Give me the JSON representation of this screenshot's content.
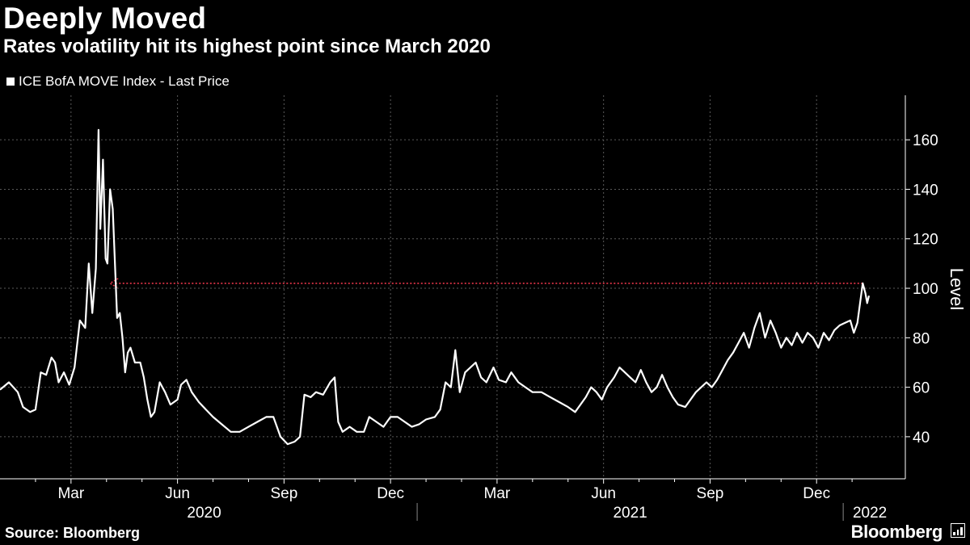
{
  "header": {
    "title": "Deeply Moved",
    "subtitle": "Rates volatility hit its highest point since March 2020"
  },
  "footer": {
    "source": "Source: Bloomberg",
    "brand": "Bloomberg"
  },
  "colors": {
    "background": "#000000",
    "line": "#ffffff",
    "grid": "#5a5a5a",
    "annotation": "#e8364a"
  },
  "chart_data": {
    "type": "line",
    "title": "Deeply Moved",
    "subtitle": "Rates volatility hit its highest point since March 2020",
    "series": [
      {
        "name": "ICE BofA MOVE Index - Last Price",
        "points": [
          [
            0,
            59
          ],
          [
            0.5,
            62
          ],
          [
            1,
            58
          ],
          [
            1.3,
            52
          ],
          [
            1.7,
            50
          ],
          [
            2,
            51
          ],
          [
            2.3,
            66
          ],
          [
            2.6,
            65
          ],
          [
            2.9,
            72
          ],
          [
            3.1,
            70
          ],
          [
            3.3,
            62
          ],
          [
            3.6,
            66
          ],
          [
            3.9,
            61
          ],
          [
            4.2,
            68
          ],
          [
            4.5,
            87
          ],
          [
            4.8,
            84
          ],
          [
            5.0,
            110
          ],
          [
            5.2,
            90
          ],
          [
            5.4,
            108
          ],
          [
            5.55,
            164
          ],
          [
            5.65,
            124
          ],
          [
            5.8,
            152
          ],
          [
            5.95,
            112
          ],
          [
            6.05,
            110
          ],
          [
            6.2,
            140
          ],
          [
            6.35,
            132
          ],
          [
            6.5,
            106
          ],
          [
            6.6,
            88
          ],
          [
            6.75,
            90
          ],
          [
            6.9,
            80
          ],
          [
            7.05,
            66
          ],
          [
            7.2,
            74
          ],
          [
            7.35,
            76
          ],
          [
            7.6,
            70
          ],
          [
            7.9,
            70
          ],
          [
            8.1,
            64
          ],
          [
            8.3,
            55
          ],
          [
            8.5,
            48
          ],
          [
            8.7,
            50
          ],
          [
            9.0,
            62
          ],
          [
            9.3,
            58
          ],
          [
            9.6,
            53
          ],
          [
            10.0,
            55
          ],
          [
            10.2,
            61
          ],
          [
            10.5,
            63
          ],
          [
            10.8,
            58
          ],
          [
            11.2,
            54
          ],
          [
            11.6,
            51
          ],
          [
            12.0,
            48
          ],
          [
            12.5,
            45
          ],
          [
            13.0,
            42
          ],
          [
            13.5,
            42
          ],
          [
            14.0,
            44
          ],
          [
            14.5,
            46
          ],
          [
            15.0,
            48
          ],
          [
            15.4,
            48
          ],
          [
            15.8,
            40
          ],
          [
            16.2,
            37
          ],
          [
            16.6,
            38
          ],
          [
            16.9,
            40
          ],
          [
            17.15,
            57
          ],
          [
            17.5,
            56
          ],
          [
            17.8,
            58
          ],
          [
            18.2,
            57
          ],
          [
            18.6,
            62
          ],
          [
            18.85,
            64
          ],
          [
            19.05,
            46
          ],
          [
            19.3,
            42
          ],
          [
            19.7,
            44
          ],
          [
            20.1,
            42
          ],
          [
            20.5,
            42
          ],
          [
            20.8,
            48
          ],
          [
            21.2,
            46
          ],
          [
            21.6,
            44
          ],
          [
            22.0,
            48
          ],
          [
            22.4,
            48
          ],
          [
            22.8,
            46
          ],
          [
            23.2,
            44
          ],
          [
            23.6,
            45
          ],
          [
            24.0,
            47
          ],
          [
            24.5,
            48
          ],
          [
            24.8,
            51
          ],
          [
            25.1,
            62
          ],
          [
            25.4,
            60
          ],
          [
            25.65,
            75
          ],
          [
            25.9,
            58
          ],
          [
            26.2,
            66
          ],
          [
            26.5,
            68
          ],
          [
            26.8,
            70
          ],
          [
            27.1,
            64
          ],
          [
            27.4,
            62
          ],
          [
            27.8,
            68
          ],
          [
            28.1,
            63
          ],
          [
            28.5,
            62
          ],
          [
            28.8,
            66
          ],
          [
            29.2,
            62
          ],
          [
            29.6,
            60
          ],
          [
            30.0,
            58
          ],
          [
            30.5,
            58
          ],
          [
            31.0,
            56
          ],
          [
            31.5,
            54
          ],
          [
            32.0,
            52
          ],
          [
            32.4,
            50
          ],
          [
            32.7,
            53
          ],
          [
            33.0,
            56
          ],
          [
            33.3,
            60
          ],
          [
            33.6,
            58
          ],
          [
            33.9,
            55
          ],
          [
            34.2,
            60
          ],
          [
            34.6,
            64
          ],
          [
            34.9,
            68
          ],
          [
            35.2,
            66
          ],
          [
            35.5,
            64
          ],
          [
            35.8,
            62
          ],
          [
            36.1,
            67
          ],
          [
            36.4,
            62
          ],
          [
            36.7,
            58
          ],
          [
            37.0,
            60
          ],
          [
            37.3,
            65
          ],
          [
            37.6,
            60
          ],
          [
            37.9,
            56
          ],
          [
            38.2,
            53
          ],
          [
            38.6,
            52
          ],
          [
            38.9,
            55
          ],
          [
            39.2,
            58
          ],
          [
            39.5,
            60
          ],
          [
            39.8,
            62
          ],
          [
            40.1,
            60
          ],
          [
            40.4,
            63
          ],
          [
            40.7,
            67
          ],
          [
            41.0,
            71
          ],
          [
            41.3,
            74
          ],
          [
            41.6,
            78
          ],
          [
            41.9,
            82
          ],
          [
            42.2,
            76
          ],
          [
            42.5,
            84
          ],
          [
            42.8,
            90
          ],
          [
            43.1,
            80
          ],
          [
            43.4,
            87
          ],
          [
            43.7,
            82
          ],
          [
            44.0,
            76
          ],
          [
            44.3,
            80
          ],
          [
            44.6,
            77
          ],
          [
            44.9,
            82
          ],
          [
            45.2,
            78
          ],
          [
            45.5,
            82
          ],
          [
            45.8,
            80
          ],
          [
            46.1,
            76
          ],
          [
            46.4,
            82
          ],
          [
            46.7,
            79
          ],
          [
            47.0,
            83
          ],
          [
            47.3,
            85
          ],
          [
            47.6,
            86
          ],
          [
            47.9,
            87
          ],
          [
            48.1,
            82
          ],
          [
            48.3,
            86
          ],
          [
            48.45,
            94
          ],
          [
            48.6,
            102
          ],
          [
            48.75,
            98
          ],
          [
            48.85,
            94
          ],
          [
            48.95,
            97
          ]
        ]
      }
    ],
    "annotation": {
      "type": "dotted-arrow",
      "from_x": 48.6,
      "to_x": 6.2,
      "y": 102
    },
    "x_ticks": [
      {
        "pos": 4,
        "label": "Mar"
      },
      {
        "pos": 10,
        "label": "Jun"
      },
      {
        "pos": 16,
        "label": "Sep"
      },
      {
        "pos": 22,
        "label": "Dec"
      },
      {
        "pos": 28,
        "label": "Mar"
      },
      {
        "pos": 34,
        "label": "Jun"
      },
      {
        "pos": 40,
        "label": "Sep"
      },
      {
        "pos": 46,
        "label": "Dec"
      }
    ],
    "x_minor_ticks": [
      2,
      6,
      8,
      12,
      14,
      18,
      20,
      24,
      26,
      30,
      32,
      36,
      38,
      42,
      44,
      48
    ],
    "year_labels": [
      {
        "pos": 11.5,
        "label": "2020"
      },
      {
        "pos": 35.5,
        "label": "2021"
      },
      {
        "pos": 49,
        "label": "2022"
      }
    ],
    "year_separators": [
      23.5,
      47.5
    ],
    "xlim": [
      0,
      51
    ],
    "ylim": [
      23,
      178
    ],
    "y_ticks": [
      40,
      60,
      80,
      100,
      120,
      140,
      160
    ],
    "ylabel": "Level",
    "xlabel": "",
    "grid": true
  }
}
